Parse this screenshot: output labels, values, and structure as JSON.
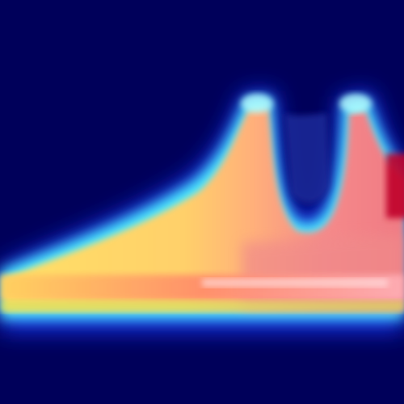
{
  "image": {
    "kind": "heatmap-overlay",
    "colormap": "jet",
    "colors": {
      "background": "#00005a",
      "blue": "#1e3cff",
      "cyan": "#4ff7ff",
      "yellow": "#ffe066",
      "orange": "#ffb061",
      "salmon": "#f08a8a",
      "pink": "#ffa3a8",
      "red": "#c0002a"
    }
  }
}
